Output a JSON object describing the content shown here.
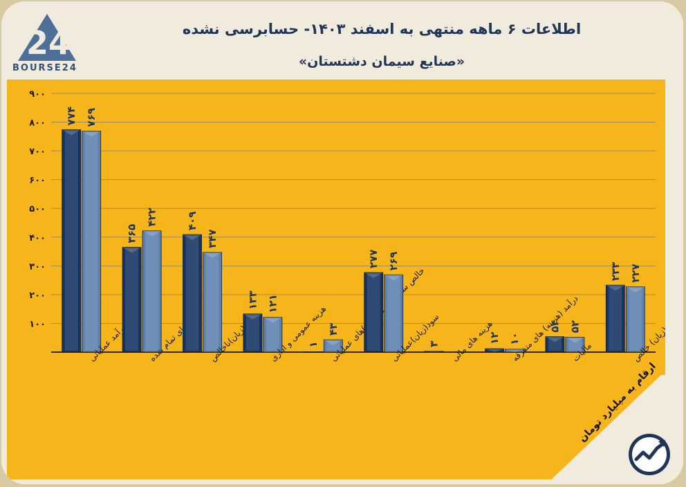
{
  "header": {
    "title": "اطلاعات ۶ ماهه منتهی به اسفند ۱۴۰۳- حسابرسی نشده",
    "subtitle": "«صنایع سیمان دشتستان»",
    "logo_number": "24",
    "logo_text": "BOURSE24",
    "unit_note": "ارقام به میلیارد تومان"
  },
  "colors": {
    "background": "#f0ebdd",
    "panel": "#f7b51c",
    "bar_dark": "#143360",
    "bar_light": "#5d80ad",
    "grid": "#a08a55",
    "title": "#1e3557"
  },
  "chart_data": {
    "type": "bar",
    "title": "اطلاعات ۶ ماهه منتهی به اسفند ۱۴۰۳- حسابرسی نشده",
    "ylim": [
      0,
      900
    ],
    "yticks": [
      0,
      100,
      200,
      300,
      400,
      500,
      600,
      700,
      800,
      900
    ],
    "ytick_labels": [
      "",
      "۱۰۰",
      "۲۰۰",
      "۳۰۰",
      "۴۰۰",
      "۵۰۰",
      "۶۰۰",
      "۷۰۰",
      "۸۰۰",
      "۹۰۰"
    ],
    "grid": true,
    "categories": [
      "درآمد عملیاتی",
      "بهای تمام شده",
      "سود(زیان)ناخالص",
      "هزینه عمومی و اداری",
      "خالص سایر درامد(هزینه)های عملیاتی",
      "سود(زیان)عملیاتی",
      "هزینه های مالی",
      "درآمد (هزینه) های متفرقه",
      "مالیات",
      "سود(زیان) خالص"
    ],
    "series": [
      {
        "name": "series-1",
        "color": "#143360",
        "values": [
          774,
          365,
          409,
          133,
          1,
          277,
          3,
          12,
          54,
          233
        ],
        "labels": [
          "۷۷۴",
          "۳۶۵",
          "۴۰۹",
          "۱۳۳",
          "۱",
          "۲۷۷",
          "۳",
          "۱۲",
          "۵۴",
          "۲۳۳"
        ]
      },
      {
        "name": "series-2",
        "color": "#5d80ad",
        "values": [
          769,
          422,
          347,
          121,
          43,
          269,
          0,
          10,
          52,
          227
        ],
        "labels": [
          "۷۶۹",
          "۴۲۲",
          "۳۴۷",
          "۱۲۱",
          "۴۳",
          "۲۶۹",
          "",
          "۱۰",
          "۵۲",
          "۲۲۷"
        ]
      }
    ]
  }
}
